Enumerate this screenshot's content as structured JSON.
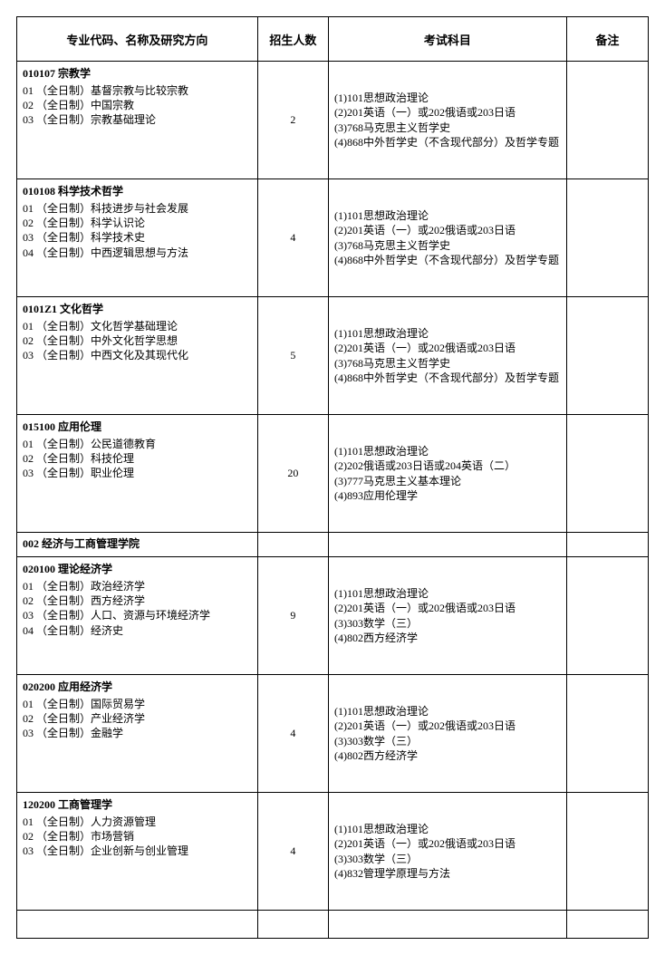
{
  "headers": {
    "major": "专业代码、名称及研究方向",
    "enroll": "招生人数",
    "subject": "考试科目",
    "note": "备注"
  },
  "rows": [
    {
      "type": "data",
      "major_header": "010107  宗教学",
      "major_lines": [
        "01  （全日制）基督宗教与比较宗教",
        "02  （全日制）中国宗教",
        "03  （全日制）宗教基础理论"
      ],
      "enroll": "2",
      "subjects": [
        "(1)101思想政治理论",
        "(2)201英语（一）或202俄语或203日语",
        "(3)768马克思主义哲学史",
        "(4)868中外哲学史（不含现代部分）及哲学专题"
      ],
      "note": ""
    },
    {
      "type": "data",
      "major_header": "010108  科学技术哲学",
      "major_lines": [
        "01  （全日制）科技进步与社会发展",
        "02  （全日制）科学认识论",
        "03  （全日制）科学技术史",
        "04  （全日制）中西逻辑思想与方法"
      ],
      "enroll": "4",
      "subjects": [
        "(1)101思想政治理论",
        "(2)201英语（一）或202俄语或203日语",
        "(3)768马克思主义哲学史",
        "(4)868中外哲学史（不含现代部分）及哲学专题"
      ],
      "note": ""
    },
    {
      "type": "data",
      "major_header": "0101Z1 文化哲学",
      "major_lines": [
        "01  （全日制）文化哲学基础理论",
        "02  （全日制）中外文化哲学思想",
        "03  （全日制）中西文化及其现代化"
      ],
      "enroll": "5",
      "subjects": [
        "(1)101思想政治理论",
        "(2)201英语（一）或202俄语或203日语",
        "(3)768马克思主义哲学史",
        "(4)868中外哲学史（不含现代部分）及哲学专题"
      ],
      "note": ""
    },
    {
      "type": "data",
      "major_header": "015100  应用伦理",
      "major_lines": [
        "01  （全日制）公民道德教育",
        "02  （全日制）科技伦理",
        "03  （全日制）职业伦理"
      ],
      "enroll": "20",
      "subjects": [
        "(1)101思想政治理论",
        "(2)202俄语或203日语或204英语（二）",
        "(3)777马克思主义基本理论",
        "(4)893应用伦理学"
      ],
      "note": ""
    },
    {
      "type": "school",
      "school_header": "002  经济与工商管理学院"
    },
    {
      "type": "data",
      "major_header": "020100  理论经济学",
      "major_lines": [
        "01  （全日制）政治经济学",
        "02  （全日制）西方经济学",
        "03  （全日制）人口、资源与环境经济学",
        "04  （全日制）经济史"
      ],
      "enroll": "9",
      "subjects": [
        "(1)101思想政治理论",
        "(2)201英语（一）或202俄语或203日语",
        "(3)303数学（三）",
        "(4)802西方经济学"
      ],
      "note": ""
    },
    {
      "type": "data",
      "major_header": "020200  应用经济学",
      "major_lines": [
        "01  （全日制）国际贸易学",
        "02  （全日制）产业经济学",
        "03  （全日制）金融学"
      ],
      "enroll": "4",
      "subjects": [
        "(1)101思想政治理论",
        "(2)201英语（一）或202俄语或203日语",
        "(3)303数学（三）",
        "(4)802西方经济学"
      ],
      "note": ""
    },
    {
      "type": "data",
      "major_header": "120200  工商管理学",
      "major_lines": [
        "01  （全日制）人力资源管理",
        "02  （全日制）市场营销",
        "03  （全日制）企业创新与创业管理"
      ],
      "enroll": "4",
      "subjects": [
        "(1)101思想政治理论",
        "(2)201英语（一）或202俄语或203日语",
        "(3)303数学（三）",
        "(4)832管理学原理与方法"
      ],
      "note": ""
    },
    {
      "type": "last"
    }
  ]
}
